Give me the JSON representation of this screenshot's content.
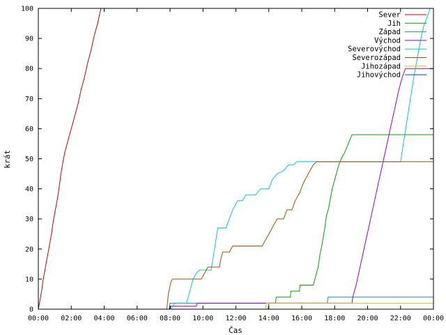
{
  "chart_data": {
    "type": "line",
    "title": "",
    "xlabel": "Čas",
    "ylabel": "krát",
    "xlim": [
      0,
      24
    ],
    "ylim": [
      0,
      100
    ],
    "grid": false,
    "legend_position": "top-right",
    "x_ticks": [
      {
        "value": 0,
        "label": "00:00"
      },
      {
        "value": 2,
        "label": "02:00"
      },
      {
        "value": 4,
        "label": "04:00"
      },
      {
        "value": 6,
        "label": "06:00"
      },
      {
        "value": 8,
        "label": "08:00"
      },
      {
        "value": 10,
        "label": "10:00"
      },
      {
        "value": 12,
        "label": "12:00"
      },
      {
        "value": 14,
        "label": "14:00"
      },
      {
        "value": 16,
        "label": "16:00"
      },
      {
        "value": 18,
        "label": "18:00"
      },
      {
        "value": 20,
        "label": "20:00"
      },
      {
        "value": 22,
        "label": "22:00"
      },
      {
        "value": 24,
        "label": "00:00"
      }
    ],
    "y_ticks": [
      {
        "value": 0,
        "label": "0"
      },
      {
        "value": 10,
        "label": "10"
      },
      {
        "value": 20,
        "label": "20"
      },
      {
        "value": 30,
        "label": "30"
      },
      {
        "value": 40,
        "label": "40"
      },
      {
        "value": 50,
        "label": "50"
      },
      {
        "value": 60,
        "label": "60"
      },
      {
        "value": 70,
        "label": "70"
      },
      {
        "value": 80,
        "label": "80"
      },
      {
        "value": 90,
        "label": "90"
      },
      {
        "value": 100,
        "label": "100"
      }
    ],
    "series": [
      {
        "name": "Sever",
        "color": "#cc0000",
        "points": [
          [
            0.0,
            0
          ],
          [
            0.1,
            3
          ],
          [
            0.2,
            6
          ],
          [
            0.3,
            10
          ],
          [
            0.4,
            13
          ],
          [
            0.5,
            16
          ],
          [
            0.6,
            19
          ],
          [
            0.7,
            22
          ],
          [
            0.8,
            25
          ],
          [
            0.9,
            29
          ],
          [
            1.0,
            32
          ],
          [
            1.1,
            35
          ],
          [
            1.2,
            38
          ],
          [
            1.3,
            42
          ],
          [
            1.4,
            46
          ],
          [
            1.5,
            49
          ],
          [
            1.6,
            52
          ],
          [
            1.8,
            56
          ],
          [
            2.0,
            60
          ],
          [
            2.2,
            64
          ],
          [
            2.4,
            68
          ],
          [
            2.6,
            73
          ],
          [
            2.8,
            77
          ],
          [
            3.0,
            82
          ],
          [
            3.2,
            86
          ],
          [
            3.4,
            91
          ],
          [
            3.6,
            95
          ],
          [
            3.8,
            100
          ]
        ]
      },
      {
        "name": "Jih",
        "color": "#00a000",
        "points": [
          [
            0.0,
            0
          ],
          [
            13.95,
            0
          ],
          [
            14.0,
            2
          ],
          [
            14.4,
            2
          ],
          [
            14.45,
            4
          ],
          [
            15.3,
            4
          ],
          [
            15.35,
            6
          ],
          [
            15.85,
            6
          ],
          [
            15.9,
            8
          ],
          [
            16.7,
            8
          ],
          [
            16.8,
            10
          ],
          [
            17.0,
            14
          ],
          [
            17.1,
            18
          ],
          [
            17.25,
            22
          ],
          [
            17.4,
            27
          ],
          [
            17.5,
            31
          ],
          [
            17.65,
            34
          ],
          [
            17.75,
            37
          ],
          [
            17.85,
            40
          ],
          [
            17.95,
            42
          ],
          [
            18.05,
            44
          ],
          [
            18.15,
            46
          ],
          [
            18.25,
            48
          ],
          [
            18.4,
            50
          ],
          [
            18.6,
            52
          ],
          [
            18.75,
            54
          ],
          [
            18.9,
            56
          ],
          [
            19.05,
            58
          ],
          [
            24.0,
            58
          ]
        ]
      },
      {
        "name": "Západ",
        "color": "#1e8fa0",
        "points": [
          [
            0.0,
            0
          ],
          [
            7.95,
            0
          ],
          [
            8.0,
            2
          ],
          [
            17.55,
            2
          ],
          [
            17.6,
            4
          ],
          [
            24.0,
            4
          ]
        ]
      },
      {
        "name": "Východ",
        "color": "#9400d3",
        "points": [
          [
            0.0,
            0
          ],
          [
            8.0,
            0
          ],
          [
            8.05,
            1
          ],
          [
            9.6,
            1
          ],
          [
            9.65,
            2
          ],
          [
            19.05,
            2
          ],
          [
            19.1,
            4
          ],
          [
            19.3,
            8
          ],
          [
            19.5,
            13
          ],
          [
            19.7,
            18
          ],
          [
            19.9,
            23
          ],
          [
            20.1,
            28
          ],
          [
            20.3,
            33
          ],
          [
            20.5,
            38
          ],
          [
            20.7,
            43
          ],
          [
            20.9,
            48
          ],
          [
            21.1,
            53
          ],
          [
            21.3,
            58
          ],
          [
            21.5,
            63
          ],
          [
            21.7,
            68
          ],
          [
            21.9,
            73
          ],
          [
            22.1,
            77
          ],
          [
            22.3,
            80
          ],
          [
            24.0,
            80
          ]
        ]
      },
      {
        "name": "Severovýchod",
        "color": "#00cccc",
        "points": [
          [
            0.0,
            0
          ],
          [
            8.1,
            0
          ],
          [
            8.15,
            1
          ],
          [
            8.3,
            2
          ],
          [
            9.0,
            2
          ],
          [
            9.2,
            6
          ],
          [
            9.4,
            10
          ],
          [
            9.6,
            12
          ],
          [
            9.8,
            13
          ],
          [
            10.5,
            13
          ],
          [
            10.7,
            20
          ],
          [
            10.9,
            27
          ],
          [
            11.4,
            27
          ],
          [
            11.6,
            30
          ],
          [
            11.8,
            33
          ],
          [
            12.1,
            36
          ],
          [
            12.4,
            36
          ],
          [
            12.6,
            38
          ],
          [
            13.2,
            38
          ],
          [
            13.5,
            40
          ],
          [
            14.0,
            40
          ],
          [
            14.2,
            43
          ],
          [
            14.5,
            45
          ],
          [
            14.9,
            46
          ],
          [
            15.2,
            48
          ],
          [
            15.5,
            48
          ],
          [
            15.7,
            49
          ],
          [
            16.6,
            49
          ],
          [
            22.0,
            49
          ],
          [
            22.2,
            56
          ],
          [
            22.4,
            63
          ],
          [
            22.6,
            70
          ],
          [
            22.8,
            77
          ],
          [
            23.0,
            83
          ],
          [
            23.2,
            89
          ],
          [
            23.4,
            94
          ],
          [
            23.6,
            97
          ],
          [
            23.8,
            100
          ]
        ]
      },
      {
        "name": "Severozápad",
        "color": "#b04a00",
        "points": [
          [
            0.0,
            0
          ],
          [
            7.8,
            0
          ],
          [
            7.9,
            5
          ],
          [
            8.05,
            9
          ],
          [
            8.15,
            10
          ],
          [
            9.9,
            10
          ],
          [
            10.1,
            12
          ],
          [
            10.3,
            14
          ],
          [
            11.0,
            14
          ],
          [
            11.1,
            17
          ],
          [
            11.2,
            19
          ],
          [
            11.6,
            19
          ],
          [
            11.8,
            21
          ],
          [
            13.6,
            21
          ],
          [
            13.8,
            23
          ],
          [
            14.0,
            25
          ],
          [
            14.2,
            27
          ],
          [
            14.5,
            30
          ],
          [
            14.9,
            30
          ],
          [
            15.1,
            33
          ],
          [
            15.4,
            33
          ],
          [
            15.6,
            36
          ],
          [
            15.9,
            39
          ],
          [
            16.1,
            42
          ],
          [
            16.3,
            44
          ],
          [
            16.5,
            46
          ],
          [
            16.7,
            48
          ],
          [
            16.9,
            49
          ],
          [
            24.0,
            49
          ]
        ]
      },
      {
        "name": "Jihozápad",
        "color": "#e6c000",
        "points": [
          [
            0.0,
            0
          ],
          [
            13.8,
            0
          ],
          [
            13.85,
            2
          ],
          [
            24.0,
            2
          ]
        ]
      },
      {
        "name": "Jihovýchod",
        "color": "#0044aa",
        "points": [
          [
            0.0,
            0
          ],
          [
            24.0,
            0
          ]
        ]
      }
    ]
  }
}
